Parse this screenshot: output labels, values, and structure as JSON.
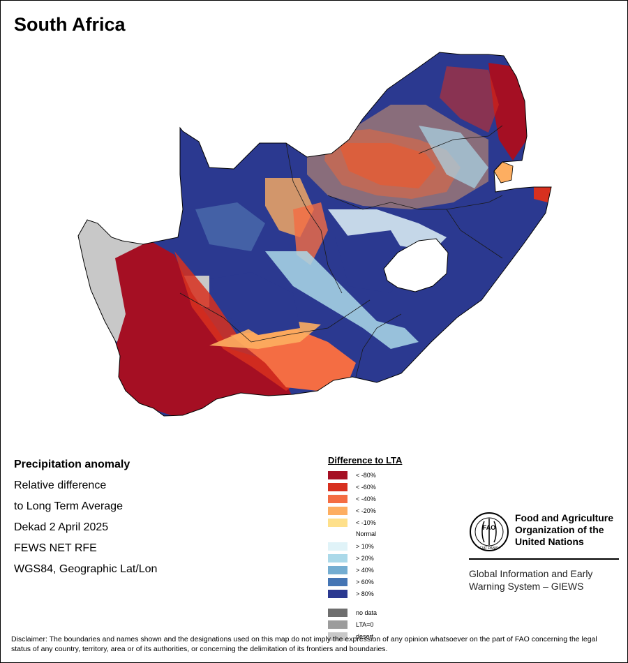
{
  "title": "South Africa",
  "info": {
    "heading": "Precipitation anomaly",
    "lines": [
      "Relative difference",
      "to Long Term Average",
      "Dekad 2 April 2025",
      "FEWS NET RFE",
      "WGS84, Geographic Lat/Lon"
    ]
  },
  "legend": {
    "title": "Difference to LTA",
    "negative": [
      {
        "label": "< -80%",
        "color": "#a50f23"
      },
      {
        "label": "< -60%",
        "color": "#d7301f"
      },
      {
        "label": "< -40%",
        "color": "#f46d43"
      },
      {
        "label": "< -20%",
        "color": "#fdae61"
      },
      {
        "label": "< -10%",
        "color": "#fee08b"
      }
    ],
    "normal_label": "Normal",
    "positive": [
      {
        "label": "> 10%",
        "color": "#e0f3f8"
      },
      {
        "label": "> 20%",
        "color": "#abd9e9"
      },
      {
        "label": "> 40%",
        "color": "#74add1"
      },
      {
        "label": "> 60%",
        "color": "#4575b4"
      },
      {
        "label": "> 80%",
        "color": "#2b3990"
      }
    ],
    "special": [
      {
        "label": "no data",
        "color": "#6e6e6e"
      },
      {
        "label": "LTA=0",
        "color": "#9c9c9c"
      },
      {
        "label": "desert",
        "color": "#c8c8c8"
      }
    ]
  },
  "organization": {
    "logo_text": "FAO",
    "logo_motto": "FIAT PANIS",
    "name_lines": [
      "Food and Agriculture",
      "Organization of the",
      "United Nations"
    ],
    "system_lines": [
      "Global Information and Early",
      "Warning System – GIEWS"
    ]
  },
  "disclaimer": "Disclaimer: The boundaries and names shown and the designations used on this map do not imply the expression of any opinion whatsoever on the part of FAO concerning the legal status of any country, territory, area or of its authorities, or concerning the delimitation of its frontiers and boundaries."
}
